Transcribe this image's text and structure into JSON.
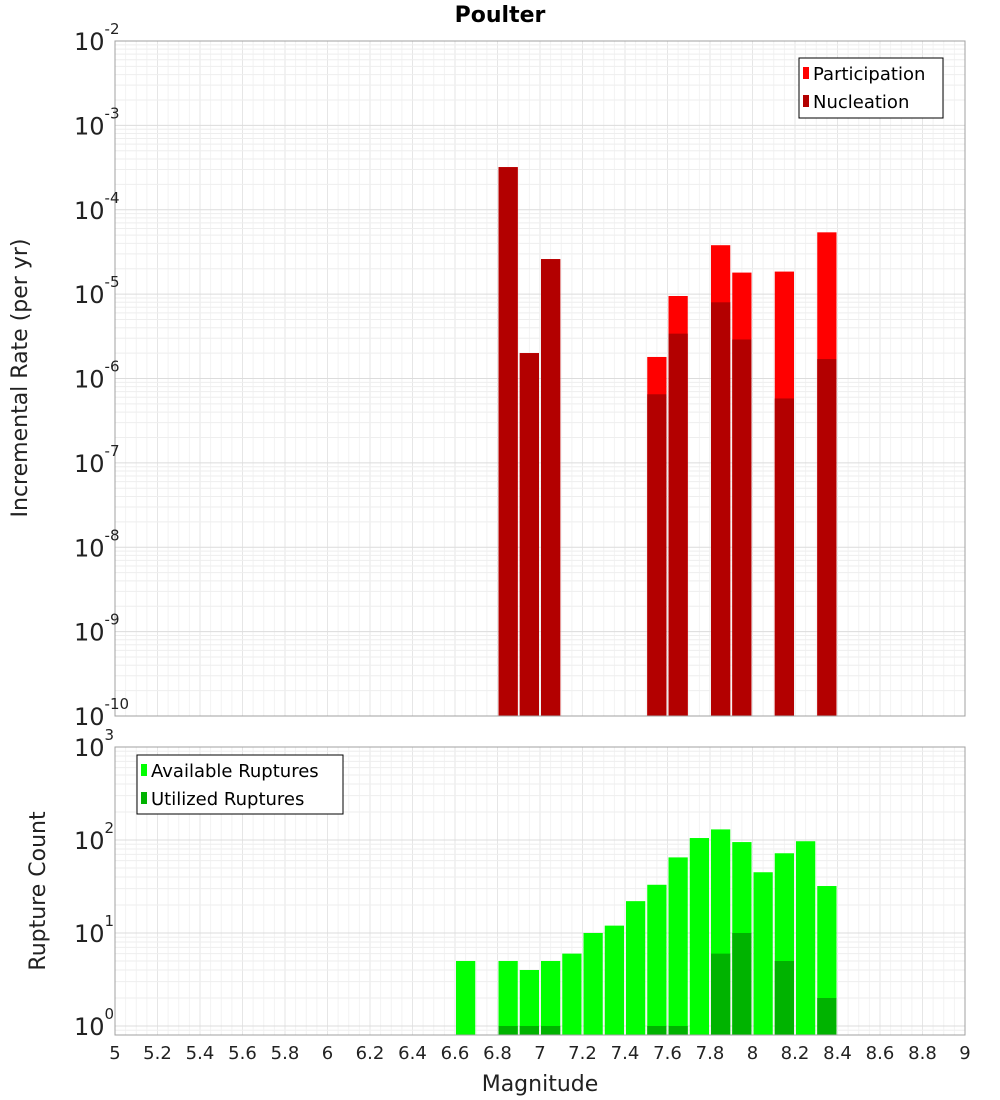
{
  "chart_data": [
    {
      "type": "bar",
      "title": "Poulter",
      "xlabel": "Magnitude",
      "ylabel": "Incremental Rate (per yr)",
      "yscale": "log",
      "ylim": [
        1e-10,
        0.01
      ],
      "xlim": [
        5,
        9
      ],
      "bin_width": 0.1,
      "ytick_labels": [
        {
          "base": "10",
          "exp": "-10"
        },
        {
          "base": "10",
          "exp": "-9"
        },
        {
          "base": "10",
          "exp": "-8"
        },
        {
          "base": "10",
          "exp": "-7"
        },
        {
          "base": "10",
          "exp": "-6"
        },
        {
          "base": "10",
          "exp": "-5"
        },
        {
          "base": "10",
          "exp": "-4"
        },
        {
          "base": "10",
          "exp": "-3"
        },
        {
          "base": "10",
          "exp": "-2"
        }
      ],
      "legend": [
        "Participation",
        "Nucleation"
      ],
      "legend_position": "top-right",
      "series": [
        {
          "name": "Participation",
          "color": "#ff0000",
          "x": [
            6.85,
            6.95,
            7.05,
            7.55,
            7.65,
            7.85,
            7.95,
            8.15,
            8.35
          ],
          "values": [
            0.00032,
            2e-06,
            2.6e-05,
            1.8e-06,
            9.5e-06,
            3.8e-05,
            1.8e-05,
            1.85e-05,
            5.4e-05
          ]
        },
        {
          "name": "Nucleation",
          "color": "#b30000",
          "x": [
            6.85,
            6.95,
            7.05,
            7.55,
            7.65,
            7.85,
            7.95,
            8.15,
            8.35
          ],
          "values": [
            0.00032,
            2e-06,
            2.6e-05,
            6.5e-07,
            3.4e-06,
            8e-06,
            2.9e-06,
            5.8e-07,
            1.7e-06
          ]
        }
      ]
    },
    {
      "type": "bar",
      "xlabel": "Magnitude",
      "ylabel": "Rupture Count",
      "yscale": "log",
      "ylim": [
        0.8,
        1000
      ],
      "xlim": [
        5,
        9
      ],
      "bin_width": 0.1,
      "ytick_labels": [
        {
          "base": "10",
          "exp": "0"
        },
        {
          "base": "10",
          "exp": "1"
        },
        {
          "base": "10",
          "exp": "2"
        },
        {
          "base": "10",
          "exp": "3"
        }
      ],
      "xtick_labels": [
        "5",
        "5.2",
        "5.4",
        "5.6",
        "5.8",
        "6",
        "6.2",
        "6.4",
        "6.6",
        "6.8",
        "7",
        "7.2",
        "7.4",
        "7.6",
        "7.8",
        "8",
        "8.2",
        "8.4",
        "8.6",
        "8.8",
        "9"
      ],
      "legend": [
        "Available Ruptures",
        "Utilized Ruptures"
      ],
      "legend_position": "top-left",
      "series": [
        {
          "name": "Available Ruptures",
          "color": "#00ff00",
          "x": [
            6.65,
            6.85,
            6.95,
            7.05,
            7.15,
            7.25,
            7.35,
            7.45,
            7.55,
            7.65,
            7.75,
            7.85,
            7.95,
            8.05,
            8.15,
            8.25,
            8.35
          ],
          "values": [
            5,
            5,
            4,
            5,
            6,
            10,
            12,
            22,
            33,
            65,
            105,
            130,
            95,
            45,
            72,
            97,
            32
          ]
        },
        {
          "name": "Utilized Ruptures",
          "color": "#00b300",
          "x": [
            6.85,
            6.95,
            7.05,
            7.55,
            7.65,
            7.85,
            7.95,
            8.15,
            8.35
          ],
          "values": [
            1,
            1,
            1,
            1,
            1,
            6,
            10,
            5,
            2
          ]
        }
      ]
    }
  ]
}
